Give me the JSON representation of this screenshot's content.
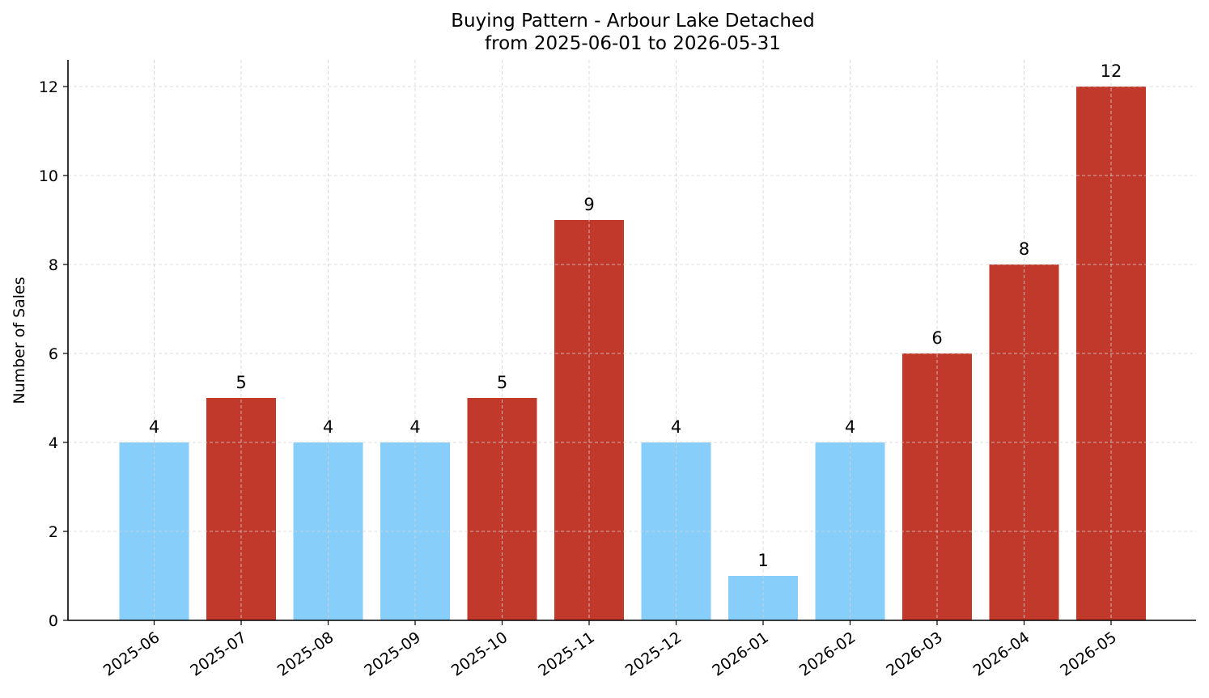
{
  "chart_data": {
    "type": "bar",
    "title": "Buying Pattern - Arbour Lake Detached",
    "subtitle": "from 2025-06-01 to 2026-05-31",
    "xlabel": "",
    "ylabel": "Number of Sales",
    "ylim": [
      0,
      12.6
    ],
    "yticks": [
      0,
      2,
      4,
      6,
      8,
      10,
      12
    ],
    "grid": true,
    "categories": [
      "2025-06",
      "2025-07",
      "2025-08",
      "2025-09",
      "2025-10",
      "2025-11",
      "2025-12",
      "2026-01",
      "2026-02",
      "2026-03",
      "2026-04",
      "2026-05"
    ],
    "values": [
      4,
      5,
      4,
      4,
      5,
      9,
      4,
      1,
      4,
      6,
      8,
      12
    ],
    "bar_colors": [
      "#87CEFA",
      "#C0392B",
      "#87CEFA",
      "#87CEFA",
      "#C0392B",
      "#C0392B",
      "#87CEFA",
      "#87CEFA",
      "#87CEFA",
      "#C0392B",
      "#C0392B",
      "#C0392B"
    ]
  }
}
